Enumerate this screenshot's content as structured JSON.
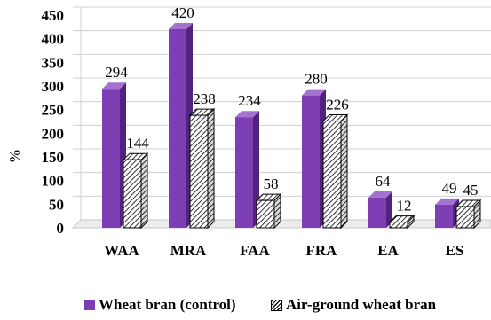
{
  "chart_data": {
    "type": "bar",
    "categories": [
      "WAA",
      "MRA",
      "FAA",
      "FRA",
      "EA",
      "ES"
    ],
    "series": [
      {
        "name": "Wheat bran (control)",
        "values": [
          294,
          420,
          234,
          280,
          64,
          49
        ],
        "color": "#7f3fb4",
        "pattern": "solid"
      },
      {
        "name": "Air-ground wheat bran",
        "values": [
          144,
          238,
          58,
          226,
          12,
          45
        ],
        "color": "#ffffff",
        "pattern": "diagonal-hatch"
      }
    ],
    "ylabel": "%",
    "ylim": [
      0,
      450
    ],
    "yticks": [
      "0",
      "50",
      "100",
      "150",
      "200",
      "250",
      "300",
      "350",
      "400",
      "450"
    ],
    "grid": true,
    "legend_position": "bottom",
    "style": "3d-columns"
  }
}
